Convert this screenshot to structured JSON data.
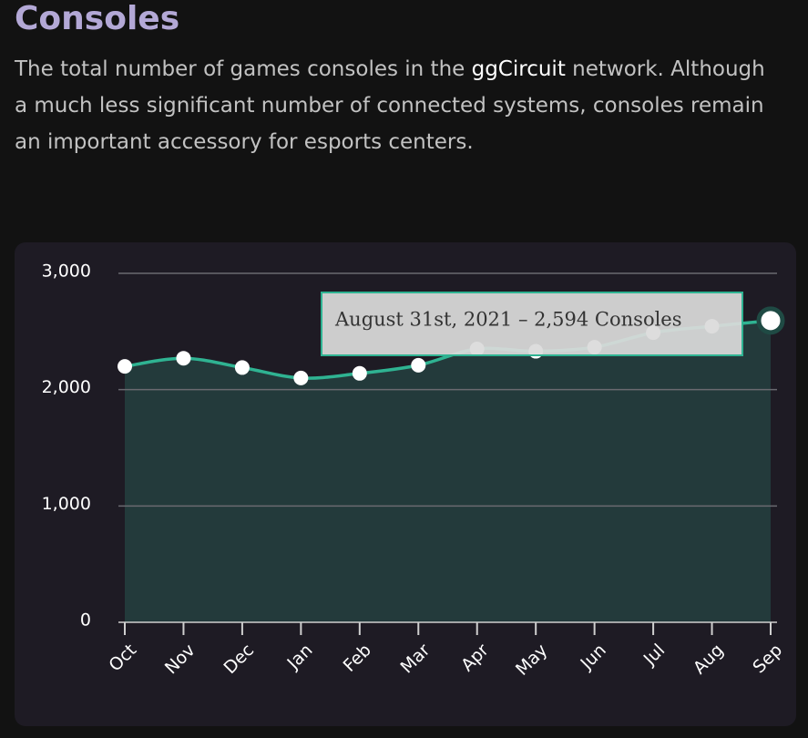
{
  "heading": "Consoles",
  "description": [
    "The total number of games consoles in the ",
    "ggCircuit",
    " network. Although a much less significant number of connected systems, consoles remain an important accessory for esports centers."
  ],
  "chart_data": {
    "type": "area",
    "categories": [
      "Oct",
      "Nov",
      "Dec",
      "Jan",
      "Feb",
      "Mar",
      "Apr",
      "May",
      "Jun",
      "Jul",
      "Aug",
      "Sep"
    ],
    "series": [
      {
        "name": "Consoles",
        "color": "#2fb392",
        "values": [
          2200,
          2270,
          2190,
          2100,
          2140,
          2210,
          2350,
          2330,
          2365,
          2490,
          2545,
          2594
        ]
      }
    ],
    "ylim": [
      0,
      3000
    ],
    "yticks": [
      0,
      {
        "value": 1000,
        "label": "1,000"
      },
      {
        "value": 2000,
        "label": "2,000"
      },
      {
        "value": 3000,
        "label": "3,000"
      }
    ],
    "grid": true,
    "tooltip": "August 31st, 2021 – 2,594 Consoles"
  }
}
